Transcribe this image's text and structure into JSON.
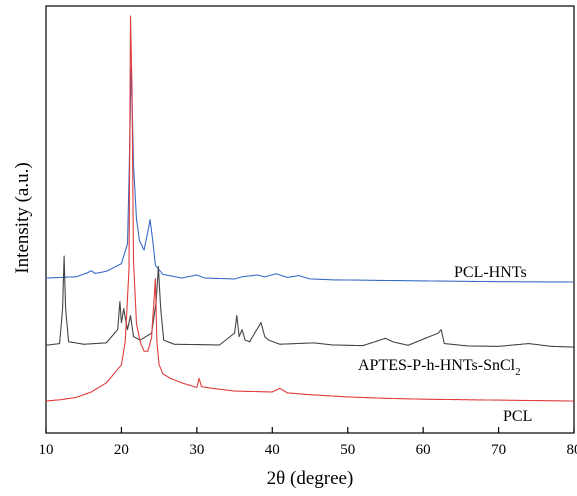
{
  "chart_data": {
    "type": "line",
    "title": "",
    "xlabel": "2θ (degree)",
    "ylabel": "Intensity (a.u.)",
    "xlim": [
      10,
      80
    ],
    "xticks": [
      10,
      20,
      30,
      40,
      50,
      60,
      70,
      80
    ],
    "yticks_shown": false,
    "grid": false,
    "legend": "none; series labeled inline at right",
    "series": [
      {
        "name": "PCL-HNTs",
        "label_main": "PCL-HNTs",
        "label_sub": "",
        "color": "#3a6cc8",
        "x": [
          10,
          14,
          15.5,
          16,
          16.5,
          18,
          20,
          20.8,
          21.0,
          21.3,
          21.6,
          22.0,
          22.4,
          23.0,
          23.5,
          23.8,
          24.1,
          24.5,
          25.5,
          28,
          30,
          31,
          35,
          36,
          38,
          39,
          40.5,
          42,
          43.5,
          45,
          48,
          55,
          62,
          70,
          80
        ],
        "y": [
          2.8,
          3.2,
          4.5,
          5.2,
          4.3,
          5.0,
          7.5,
          14,
          35,
          72,
          40,
          22,
          15,
          12,
          18,
          22,
          16,
          7,
          4.0,
          2.8,
          3.8,
          2.8,
          2.5,
          3.2,
          3.8,
          3.2,
          4.2,
          3.0,
          3.6,
          2.5,
          2.2,
          2.0,
          1.8,
          1.6,
          1.5
        ]
      },
      {
        "name": "APTES-P-h-HNTs-SnCl2",
        "label_main": "APTES-P-h-HNTs-SnCl",
        "label_sub": "2",
        "color": "#454545",
        "x": [
          10,
          11.8,
          12.2,
          12.4,
          12.6,
          13.0,
          15,
          18,
          19.5,
          19.8,
          20.0,
          20.3,
          20.8,
          21.2,
          21.6,
          22.5,
          24.0,
          24.6,
          24.9,
          25.2,
          25.6,
          27,
          30,
          33,
          35.0,
          35.3,
          35.6,
          36.0,
          36.4,
          37,
          38.5,
          39.0,
          39.5,
          41,
          45.5,
          48,
          52,
          55,
          56,
          58,
          62.0,
          62.4,
          62.8,
          66,
          70,
          74,
          77,
          80
        ],
        "y": [
          1.5,
          2.0,
          12,
          27,
          12,
          2.5,
          1.8,
          2.2,
          6,
          14,
          8,
          12,
          6,
          10,
          4,
          3,
          5,
          14,
          24,
          12,
          3,
          1.8,
          1.7,
          1.6,
          5,
          10,
          4,
          6,
          3,
          2.5,
          8,
          4,
          3,
          1.8,
          2.2,
          1.6,
          1.4,
          3.5,
          2.5,
          1.5,
          5,
          6,
          2,
          1.3,
          1.2,
          2.0,
          1.2,
          1.0
        ]
      },
      {
        "name": "PCL",
        "label_main": "PCL",
        "label_sub": "",
        "color": "#e03c3c",
        "x": [
          10,
          12,
          14,
          16,
          18,
          19,
          20,
          20.5,
          21.0,
          21.2,
          21.4,
          21.6,
          22.0,
          22.5,
          23,
          23.5,
          24.0,
          24.3,
          24.5,
          24.7,
          25.0,
          25.5,
          26.5,
          28,
          30,
          30.3,
          30.6,
          32,
          35,
          40,
          41,
          42,
          45,
          50,
          55,
          60,
          65,
          70,
          75,
          80
        ],
        "y": [
          1.0,
          1.3,
          1.8,
          3,
          5,
          7,
          9,
          14,
          30,
          86,
          70,
          32,
          18,
          14,
          12,
          12,
          15,
          23,
          28,
          14,
          9,
          7,
          6,
          5,
          4,
          6,
          4.2,
          3.8,
          3.2,
          3.0,
          3.8,
          2.8,
          2.4,
          1.9,
          1.6,
          1.4,
          1.3,
          1.2,
          1.1,
          1.0
        ]
      }
    ]
  }
}
